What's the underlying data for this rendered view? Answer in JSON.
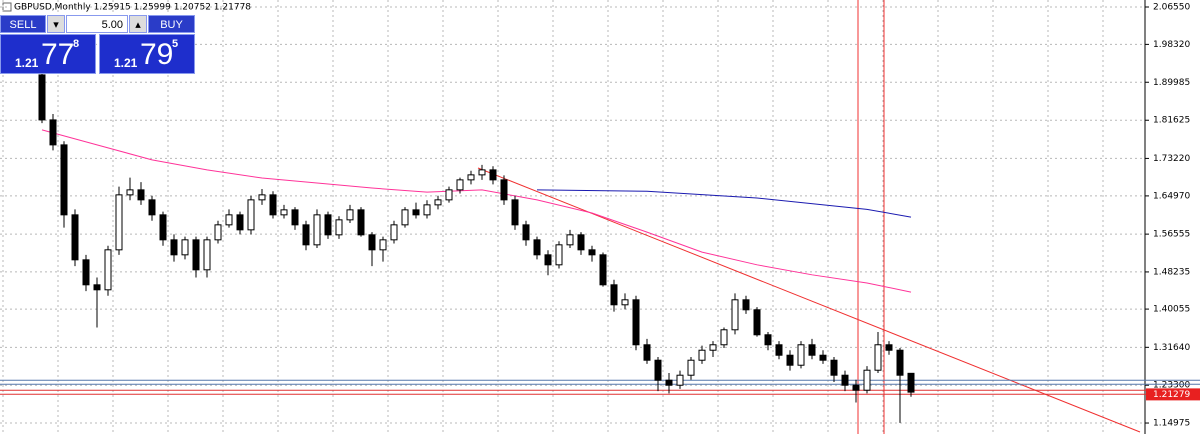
{
  "header": {
    "title": "GBPUSD,Monthly  1.25915 1.25999 1.20752 1.21778"
  },
  "trade_panel": {
    "sell": "SELL",
    "buy": "BUY",
    "volume": "5.00",
    "bid": {
      "big": "1.21",
      "pips": "77",
      "point": "8"
    },
    "ask": {
      "big": "1.21",
      "pips": "79",
      "point": "5"
    }
  },
  "chart_data": {
    "type": "candlestick",
    "ylim": [
      1.1256,
      2.0809
    ],
    "yticks": [
      {
        "value": 2.0655,
        "label": "2.06550"
      },
      {
        "value": 1.9832,
        "label": "1.98320"
      },
      {
        "value": 1.89985,
        "label": "1.89985"
      },
      {
        "value": 1.81625,
        "label": "1.81625"
      },
      {
        "value": 1.7322,
        "label": "1.73220"
      },
      {
        "value": 1.6497,
        "label": "1.64970"
      },
      {
        "value": 1.56555,
        "label": "1.56555"
      },
      {
        "value": 1.48235,
        "label": "1.48235"
      },
      {
        "value": 1.40055,
        "label": "1.40055"
      },
      {
        "value": 1.3164,
        "label": "1.31640"
      },
      {
        "value": 1.233,
        "label": "1.23300"
      },
      {
        "value": 1.14975,
        "label": "1.14975"
      }
    ],
    "grid": true,
    "up_color": "#ffffff",
    "down_color": "#000000",
    "candles": [
      [
        1.916,
        1.927,
        1.81,
        1.817
      ],
      [
        1.817,
        1.83,
        1.75,
        1.762
      ],
      [
        1.762,
        1.77,
        1.58,
        1.608
      ],
      [
        1.608,
        1.62,
        1.495,
        1.509
      ],
      [
        1.509,
        1.52,
        1.44,
        1.454
      ],
      [
        1.454,
        1.47,
        1.36,
        1.443
      ],
      [
        1.443,
        1.54,
        1.43,
        1.531
      ],
      [
        1.531,
        1.67,
        1.52,
        1.652
      ],
      [
        1.652,
        1.69,
        1.64,
        1.663
      ],
      [
        1.663,
        1.68,
        1.63,
        1.641
      ],
      [
        1.641,
        1.65,
        1.595,
        1.608
      ],
      [
        1.608,
        1.615,
        1.54,
        1.553
      ],
      [
        1.553,
        1.565,
        1.505,
        1.52
      ],
      [
        1.52,
        1.56,
        1.51,
        1.553
      ],
      [
        1.553,
        1.56,
        1.47,
        1.487
      ],
      [
        1.487,
        1.56,
        1.47,
        1.553
      ],
      [
        1.553,
        1.595,
        1.545,
        1.586
      ],
      [
        1.586,
        1.62,
        1.58,
        1.608
      ],
      [
        1.608,
        1.615,
        1.565,
        1.575
      ],
      [
        1.575,
        1.65,
        1.565,
        1.641
      ],
      [
        1.641,
        1.665,
        1.63,
        1.652
      ],
      [
        1.652,
        1.66,
        1.6,
        1.608
      ],
      [
        1.608,
        1.63,
        1.6,
        1.619
      ],
      [
        1.619,
        1.625,
        1.575,
        1.586
      ],
      [
        1.586,
        1.595,
        1.53,
        1.542
      ],
      [
        1.542,
        1.62,
        1.535,
        1.608
      ],
      [
        1.608,
        1.615,
        1.555,
        1.564
      ],
      [
        1.564,
        1.605,
        1.555,
        1.597
      ],
      [
        1.597,
        1.63,
        1.59,
        1.619
      ],
      [
        1.619,
        1.625,
        1.56,
        1.564
      ],
      [
        1.564,
        1.57,
        1.495,
        1.531
      ],
      [
        1.531,
        1.56,
        1.505,
        1.553
      ],
      [
        1.553,
        1.595,
        1.545,
        1.586
      ],
      [
        1.586,
        1.625,
        1.58,
        1.619
      ],
      [
        1.619,
        1.635,
        1.6,
        1.608
      ],
      [
        1.608,
        1.64,
        1.6,
        1.63
      ],
      [
        1.63,
        1.65,
        1.62,
        1.641
      ],
      [
        1.641,
        1.67,
        1.635,
        1.663
      ],
      [
        1.663,
        1.69,
        1.655,
        1.685
      ],
      [
        1.685,
        1.705,
        1.675,
        1.696
      ],
      [
        1.696,
        1.718,
        1.685,
        1.707
      ],
      [
        1.707,
        1.715,
        1.675,
        1.685
      ],
      [
        1.685,
        1.695,
        1.63,
        1.641
      ],
      [
        1.641,
        1.65,
        1.575,
        1.586
      ],
      [
        1.586,
        1.595,
        1.54,
        1.553
      ],
      [
        1.553,
        1.56,
        1.51,
        1.52
      ],
      [
        1.52,
        1.53,
        1.475,
        1.498
      ],
      [
        1.498,
        1.55,
        1.49,
        1.542
      ],
      [
        1.542,
        1.575,
        1.535,
        1.564
      ],
      [
        1.564,
        1.57,
        1.52,
        1.531
      ],
      [
        1.531,
        1.54,
        1.505,
        1.52
      ],
      [
        1.52,
        1.525,
        1.45,
        1.454
      ],
      [
        1.454,
        1.465,
        1.395,
        1.41
      ],
      [
        1.41,
        1.435,
        1.4,
        1.421
      ],
      [
        1.421,
        1.43,
        1.31,
        1.322
      ],
      [
        1.322,
        1.335,
        1.28,
        1.288
      ],
      [
        1.288,
        1.295,
        1.22,
        1.244
      ],
      [
        1.244,
        1.26,
        1.215,
        1.233
      ],
      [
        1.233,
        1.265,
        1.225,
        1.255
      ],
      [
        1.255,
        1.295,
        1.245,
        1.288
      ],
      [
        1.288,
        1.32,
        1.28,
        1.31
      ],
      [
        1.31,
        1.33,
        1.295,
        1.322
      ],
      [
        1.322,
        1.36,
        1.315,
        1.355
      ],
      [
        1.355,
        1.435,
        1.345,
        1.421
      ],
      [
        1.421,
        1.43,
        1.39,
        1.399
      ],
      [
        1.399,
        1.405,
        1.34,
        1.344
      ],
      [
        1.344,
        1.35,
        1.31,
        1.322
      ],
      [
        1.322,
        1.33,
        1.29,
        1.299
      ],
      [
        1.299,
        1.31,
        1.265,
        1.277
      ],
      [
        1.277,
        1.33,
        1.27,
        1.322
      ],
      [
        1.322,
        1.335,
        1.29,
        1.299
      ],
      [
        1.299,
        1.31,
        1.28,
        1.288
      ],
      [
        1.288,
        1.295,
        1.24,
        1.255
      ],
      [
        1.255,
        1.265,
        1.22,
        1.233
      ],
      [
        1.233,
        1.245,
        1.195,
        1.222
      ],
      [
        1.222,
        1.275,
        1.215,
        1.266
      ],
      [
        1.266,
        1.35,
        1.26,
        1.322
      ],
      [
        1.322,
        1.33,
        1.3,
        1.31
      ],
      [
        1.31,
        1.315,
        1.15,
        1.255
      ],
      [
        1.25915,
        1.25999,
        1.20752,
        1.21778
      ]
    ],
    "moving_averages": [
      {
        "color": "#ff3399",
        "x": [
          0,
          5,
          10,
          15,
          20,
          25,
          30,
          35,
          40,
          45,
          50,
          55,
          60,
          65,
          70,
          75,
          79
        ],
        "values": [
          1.795,
          1.762,
          1.729,
          1.707,
          1.689,
          1.678,
          1.667,
          1.658,
          1.663,
          1.641,
          1.612,
          1.57,
          1.526,
          1.498,
          1.476,
          1.458,
          1.438
        ]
      },
      {
        "color": "#1a1ab0",
        "x": [
          45,
          55,
          65,
          75,
          79
        ],
        "values": [
          1.663,
          1.66,
          1.645,
          1.62,
          1.603
        ]
      }
    ],
    "levels": [
      {
        "value": 1.244,
        "color": "#5577aa"
      },
      {
        "value": 1.235,
        "color": "#5577aa"
      },
      {
        "value": 1.222,
        "color": "#e03030"
      },
      {
        "value": 1.213,
        "color": "#e03030"
      }
    ],
    "price_label": 1.21279
  }
}
